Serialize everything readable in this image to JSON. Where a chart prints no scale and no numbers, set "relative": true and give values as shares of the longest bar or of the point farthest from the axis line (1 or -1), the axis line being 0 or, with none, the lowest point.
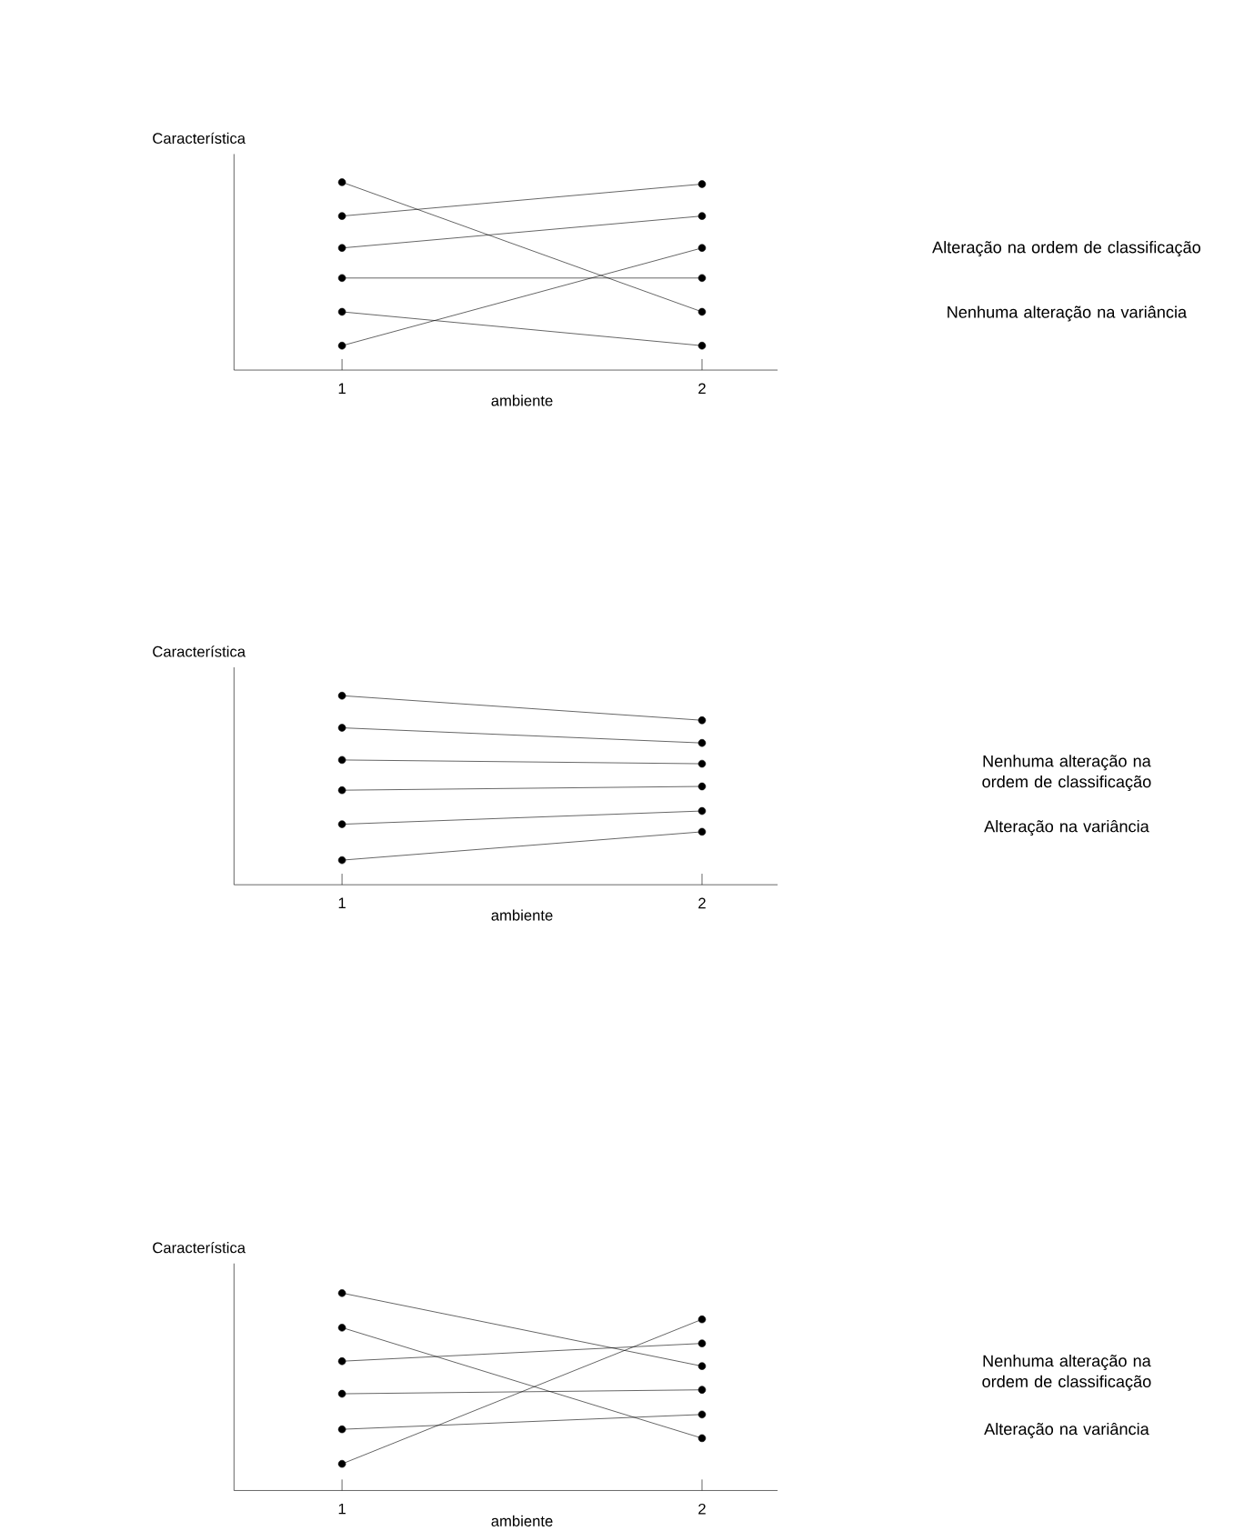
{
  "chart_data": [
    {
      "type": "line",
      "ylabel": "Característica",
      "xlabel": "ambiente",
      "categories": [
        "1",
        "2"
      ],
      "relative": true,
      "marker": "circle",
      "annotations": [
        "Alteração na ordem de classificação",
        "Nenhuma alteração na variância"
      ],
      "series": [
        {
          "color": "#000000",
          "values": [
            1,
            0.31
          ]
        },
        {
          "color": "#000000",
          "values": [
            0.82,
            0.99
          ]
        },
        {
          "color": "#000000",
          "values": [
            0.65,
            0.82
          ]
        },
        {
          "color": "#000000",
          "values": [
            0.49,
            0.49
          ]
        },
        {
          "color": "#000000",
          "values": [
            0.31,
            0.13
          ]
        },
        {
          "color": "#000000",
          "values": [
            0.13,
            0.65
          ]
        }
      ]
    },
    {
      "type": "line",
      "ylabel": "Característica",
      "xlabel": "ambiente",
      "categories": [
        "1",
        "2"
      ],
      "relative": true,
      "marker": "circle",
      "annotations": [
        "Nenhuma alteração na ordem de classificação",
        "Alteração na variância"
      ],
      "series": [
        {
          "color": "#000000",
          "values": [
            1,
            0.87
          ]
        },
        {
          "color": "#000000",
          "values": [
            0.83,
            0.75
          ]
        },
        {
          "color": "#000000",
          "values": [
            0.66,
            0.64
          ]
        },
        {
          "color": "#000000",
          "values": [
            0.5,
            0.52
          ]
        },
        {
          "color": "#000000",
          "values": [
            0.32,
            0.39
          ]
        },
        {
          "color": "#000000",
          "values": [
            0.13,
            0.28
          ]
        }
      ]
    },
    {
      "type": "line",
      "ylabel": "Característica",
      "xlabel": "ambiente",
      "categories": [
        "1",
        "2"
      ],
      "relative": true,
      "marker": "circle",
      "annotations": [
        "Nenhuma alteração na ordem de classificação",
        "Alteração na variância"
      ],
      "series": [
        {
          "color": "#000000",
          "values": [
            1,
            0.63
          ]
        },
        {
          "color": "#000000",
          "values": [
            0.825,
            0.265
          ]
        },
        {
          "color": "#000000",
          "values": [
            0.655,
            0.745
          ]
        },
        {
          "color": "#000000",
          "values": [
            0.49,
            0.51
          ]
        },
        {
          "color": "#000000",
          "values": [
            0.31,
            0.385
          ]
        },
        {
          "color": "#000000",
          "values": [
            0.135,
            0.867
          ]
        }
      ]
    }
  ]
}
